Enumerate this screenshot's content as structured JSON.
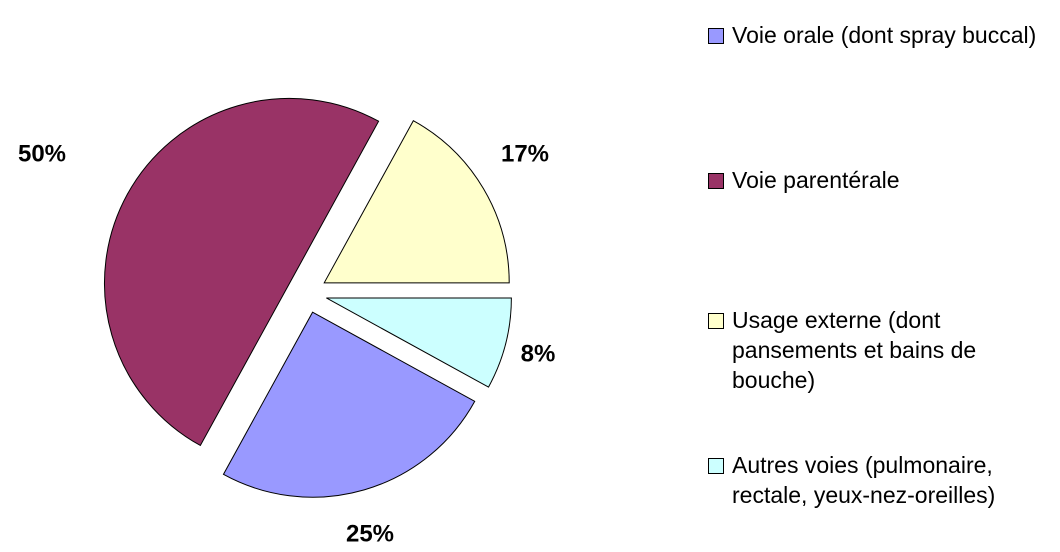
{
  "chart_data": {
    "type": "pie",
    "categories": [
      "Voie orale (dont spray buccal)",
      "Voie parentérale",
      "Usage externe (dont pansements et bains de bouche)",
      "Autres voies (pulmonaire, rectale, yeux-nez-oreilles)"
    ],
    "values": [
      25,
      50,
      17,
      8
    ],
    "value_labels": [
      "25%",
      "50%",
      "17%",
      "8%"
    ],
    "colors": [
      "#9999ff",
      "#993366",
      "#ffffcc",
      "#ccffff"
    ],
    "legend": "right"
  }
}
